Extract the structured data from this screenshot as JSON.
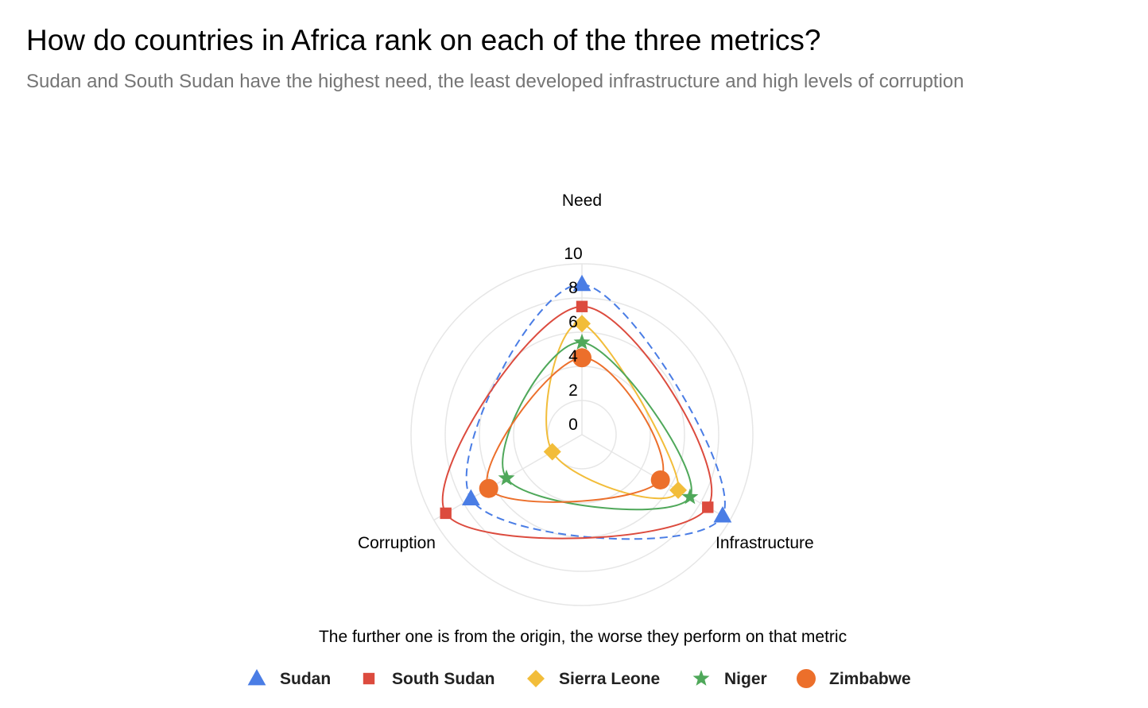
{
  "chart_data": {
    "type": "radar",
    "title": "How do countries in Africa rank on each of the three metrics?",
    "subtitle": "Sudan and South Sudan have the highest need, the least developed infrastructure and high levels of corruption",
    "axes": [
      "Need",
      "Infrastructure",
      "Corruption"
    ],
    "radial_ticks": [
      0,
      2,
      4,
      6,
      8,
      10
    ],
    "rlim": [
      0,
      10
    ],
    "grid": true,
    "note": "The further one is from the origin, the worse they perform on that metric",
    "legend_position": "bottom",
    "series": [
      {
        "name": "Sudan",
        "values": [
          8.8,
          9.5,
          7.5
        ],
        "color": "#4a7de5",
        "marker": "triangle",
        "dashed": true
      },
      {
        "name": "South Sudan",
        "values": [
          7.5,
          8.5,
          9.2
        ],
        "color": "#dc4b3e",
        "marker": "square",
        "dashed": false
      },
      {
        "name": "Sierra Leone",
        "values": [
          6.5,
          6.5,
          2.0
        ],
        "color": "#f2bd3a",
        "marker": "diamond",
        "dashed": false
      },
      {
        "name": "Niger",
        "values": [
          5.4,
          7.3,
          5.1
        ],
        "color": "#4fa85a",
        "marker": "star",
        "dashed": false
      },
      {
        "name": "Zimbabwe",
        "values": [
          4.5,
          5.3,
          6.3
        ],
        "color": "#ec6f2b",
        "marker": "circle",
        "dashed": false
      }
    ]
  }
}
